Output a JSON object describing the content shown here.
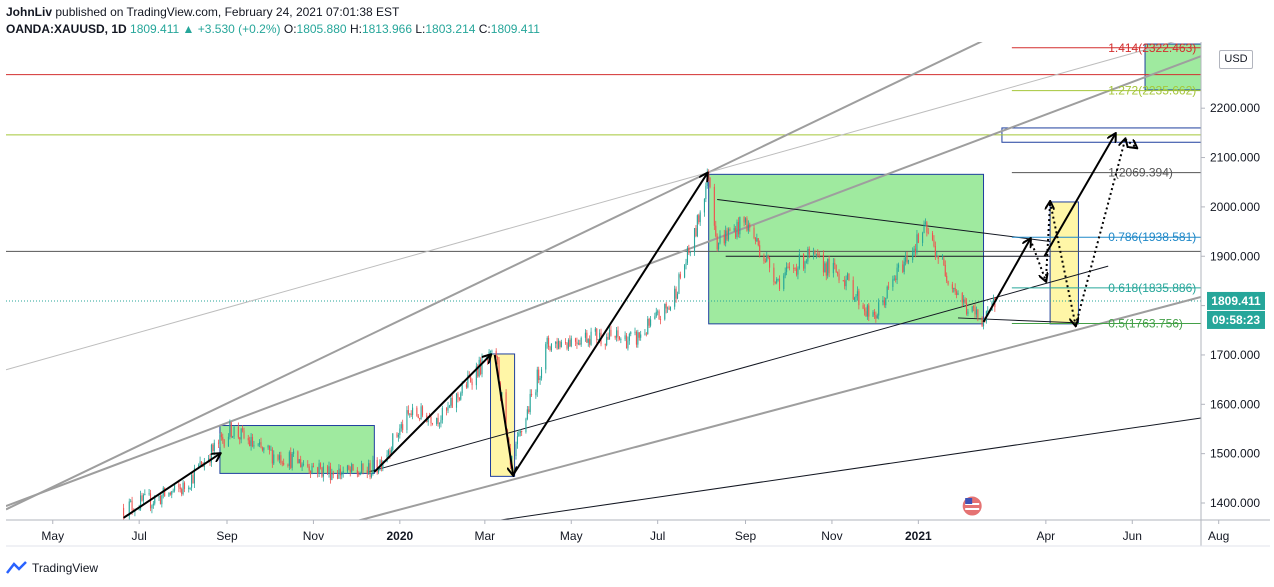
{
  "header": {
    "author": "JohnLiv",
    "published_text": "published on TradingView.com, February 24, 2021 07:01:38 EST",
    "symbol": "OANDA:XAUUSD, 1D",
    "last": "1809.411",
    "change": "+3.530 (+0.2%)",
    "open_label": "O:",
    "open": "1805.880",
    "high_label": "H:",
    "high": "1813.966",
    "low_label": "L:",
    "low": "1803.214",
    "close_label": "C:",
    "close": "1809.411"
  },
  "currency_button": "USD",
  "footer": {
    "brand": "TradingView"
  },
  "chart_data": {
    "type": "candlestick",
    "title": "",
    "xlabel": "",
    "ylabel": "",
    "ylim": [
      1370,
      2240
    ],
    "y_ticks": [
      1400,
      1500,
      1600,
      1700,
      1800,
      1900,
      2000,
      2100,
      2200
    ],
    "y_tick_labels": [
      "1400.000",
      "1500.000",
      "1600.000",
      "1700.000",
      "1800.000",
      "1900.000",
      "2000.000",
      "2100.000",
      "2200.000"
    ],
    "x_range": [
      "2019-03-29",
      "2021-08-31"
    ],
    "x_ticks": [
      {
        "date": "2019-05-01",
        "label": "May"
      },
      {
        "date": "2019-07-01",
        "label": "Jul"
      },
      {
        "date": "2019-09-01",
        "label": "Sep"
      },
      {
        "date": "2019-11-01",
        "label": "Nov"
      },
      {
        "date": "2020-01-01",
        "label": "2020"
      },
      {
        "date": "2020-03-01",
        "label": "Mar"
      },
      {
        "date": "2020-05-01",
        "label": "May"
      },
      {
        "date": "2020-07-01",
        "label": "Jul"
      },
      {
        "date": "2020-09-01",
        "label": "Sep"
      },
      {
        "date": "2020-11-01",
        "label": "Nov"
      },
      {
        "date": "2021-01-01",
        "label": "2021"
      },
      {
        "date": "2021-04-01",
        "label": "Apr"
      },
      {
        "date": "2021-06-01",
        "label": "Jun"
      },
      {
        "date": "2021-08-01",
        "label": "Aug"
      }
    ],
    "price_path": [
      {
        "date": "2019-06-20",
        "price": 1390
      },
      {
        "date": "2019-07-10",
        "price": 1405
      },
      {
        "date": "2019-08-01",
        "price": 1430
      },
      {
        "date": "2019-08-20",
        "price": 1500
      },
      {
        "date": "2019-09-04",
        "price": 1550
      },
      {
        "date": "2019-09-25",
        "price": 1505
      },
      {
        "date": "2019-10-15",
        "price": 1490
      },
      {
        "date": "2019-11-10",
        "price": 1465
      },
      {
        "date": "2019-12-01",
        "price": 1460
      },
      {
        "date": "2019-12-15",
        "price": 1470
      },
      {
        "date": "2020-01-08",
        "price": 1580
      },
      {
        "date": "2020-02-01",
        "price": 1575
      },
      {
        "date": "2020-02-24",
        "price": 1670
      },
      {
        "date": "2020-03-09",
        "price": 1700
      },
      {
        "date": "2020-03-19",
        "price": 1470
      },
      {
        "date": "2020-04-14",
        "price": 1720
      },
      {
        "date": "2020-05-15",
        "price": 1740
      },
      {
        "date": "2020-06-15",
        "price": 1730
      },
      {
        "date": "2020-07-10",
        "price": 1800
      },
      {
        "date": "2020-07-27",
        "price": 1940
      },
      {
        "date": "2020-08-06",
        "price": 2070
      },
      {
        "date": "2020-08-12",
        "price": 1930
      },
      {
        "date": "2020-09-01",
        "price": 1970
      },
      {
        "date": "2020-09-24",
        "price": 1850
      },
      {
        "date": "2020-10-15",
        "price": 1900
      },
      {
        "date": "2020-11-09",
        "price": 1860
      },
      {
        "date": "2020-11-30",
        "price": 1770
      },
      {
        "date": "2020-12-20",
        "price": 1880
      },
      {
        "date": "2021-01-06",
        "price": 1955
      },
      {
        "date": "2021-01-20",
        "price": 1870
      },
      {
        "date": "2021-02-05",
        "price": 1790
      },
      {
        "date": "2021-02-18",
        "price": 1770
      },
      {
        "date": "2021-02-24",
        "price": 1809.411
      }
    ],
    "last_price_label": "1809.411",
    "countdown_label": "09:58:23",
    "fib_levels": [
      {
        "level": "1.414",
        "price": 2322.463,
        "label": "1.414(2322.463)",
        "color": "#d32f2f"
      },
      {
        "level": "1.272",
        "price": 2235.662,
        "label": "1.272(2235.662)",
        "color": "#a4c639"
      },
      {
        "level": "1",
        "price": 2069.394,
        "label": "1(2069.394)",
        "color": "#555555"
      },
      {
        "level": "0.786",
        "price": 1938.581,
        "label": "0.786(1938.581)",
        "color": "#1e88c8"
      },
      {
        "level": "0.618",
        "price": 1835.886,
        "label": "0.618(1835.886)",
        "color": "#26a69a"
      },
      {
        "level": "0.5",
        "price": 1763.756,
        "label": "0.5(1763.756)",
        "color": "#43a047"
      }
    ],
    "green_boxes": [
      {
        "x0": "2019-08-27",
        "x1": "2019-12-14",
        "y0": 1460,
        "y1": 1557
      },
      {
        "x0": "2020-08-06",
        "x1": "2021-02-16",
        "y0": 1763,
        "y1": 2066
      },
      {
        "x0": "2021-06-10",
        "x1": "2021-08-20",
        "y0": 2237,
        "y1": 2330
      }
    ],
    "yellow_boxes": [
      {
        "x0": "2020-03-05",
        "x1": "2020-03-22",
        "y0": 1454,
        "y1": 1702
      },
      {
        "x0": "2021-04-04",
        "x1": "2021-04-24",
        "y0": 1763,
        "y1": 2010
      }
    ],
    "blue_zone": {
      "x0": "2021-03-01",
      "x1": "2021-09-30",
      "y0": 2131,
      "y1": 2160
    },
    "horizontal_lines": [
      {
        "price": 2268,
        "color": "#d32f2f"
      },
      {
        "price": 2146,
        "color": "#a4c639"
      },
      {
        "price": 1910,
        "color": "#555555"
      },
      {
        "price": 1809.411,
        "color": "#26a69a",
        "dashed": true
      }
    ],
    "trend_lines": [
      {
        "p1": [
          "2019-03-29",
          1387
        ],
        "p2": [
          "2020-08-06",
          2070
        ],
        "extend": true,
        "color": "#9e9e9e",
        "width": 2
      },
      {
        "p1": [
          "2019-03-29",
          1670
        ],
        "p2": [
          "2020-08-06",
          2070
        ],
        "extend": true,
        "color": "#bdbdbd",
        "width": 1
      },
      {
        "p1": [
          "2019-08-27",
          1557
        ],
        "p2": [
          "2021-03-18",
          2172
        ],
        "extend": true,
        "color": "#9e9e9e",
        "width": 2
      },
      {
        "p1": [
          "2019-11-27",
          1360
        ],
        "p2": [
          "2021-08-31",
          1850
        ],
        "extend": false,
        "color": "#9e9e9e",
        "width": 2
      },
      {
        "p1": [
          "2019-12-10",
          1463
        ],
        "p2": [
          "2021-05-15",
          1880
        ],
        "extend": false,
        "color": "#131722",
        "width": 1
      },
      {
        "p1": [
          "2020-02-28",
          1360
        ],
        "p2": [
          "2021-08-31",
          1590
        ],
        "extend": false,
        "color": "#131722",
        "width": 1
      },
      {
        "p1": [
          "2020-08-12",
          2015
        ],
        "p2": [
          "2021-04-04",
          1930
        ],
        "extend": false,
        "color": "#131722",
        "width": 1
      },
      {
        "p1": [
          "2020-08-18",
          1900
        ],
        "p2": [
          "2021-04-04",
          1900
        ],
        "extend": false,
        "color": "#131722",
        "width": 1
      },
      {
        "p1": [
          "2021-01-29",
          1775
        ],
        "p2": [
          "2021-04-24",
          1765
        ],
        "extend": false,
        "color": "#131722",
        "width": 1
      }
    ],
    "arrows": [
      {
        "p1": [
          "2019-06-20",
          1370
        ],
        "p2": [
          "2019-08-27",
          1500
        ],
        "style": "solid"
      },
      {
        "p1": [
          "2019-12-14",
          1463
        ],
        "p2": [
          "2020-03-05",
          1700
        ],
        "style": "solid"
      },
      {
        "p1": [
          "2020-03-08",
          1700
        ],
        "p2": [
          "2020-03-21",
          1457
        ],
        "style": "solid"
      },
      {
        "p1": [
          "2020-03-21",
          1457
        ],
        "p2": [
          "2020-08-05",
          2068
        ],
        "style": "solid"
      },
      {
        "p1": [
          "2021-02-16",
          1767
        ],
        "p2": [
          "2021-03-21",
          1935
        ],
        "style": "solid"
      },
      {
        "p1": [
          "2021-03-21",
          1935
        ],
        "p2": [
          "2021-04-01",
          1850
        ],
        "style": "dotted"
      },
      {
        "p1": [
          "2021-04-01",
          1850
        ],
        "p2": [
          "2021-04-04",
          2010
        ],
        "style": "dotted"
      },
      {
        "p1": [
          "2021-04-04",
          2010
        ],
        "p2": [
          "2021-04-22",
          1760
        ],
        "style": "dotted"
      },
      {
        "p1": [
          "2021-04-22",
          1760
        ],
        "p2": [
          "2021-05-27",
          2137
        ],
        "style": "dotted"
      },
      {
        "p1": [
          "2021-05-27",
          2137
        ],
        "p2": [
          "2021-06-04",
          2120
        ],
        "style": "dotted"
      },
      {
        "p1": [
          "2021-03-31",
          1900
        ],
        "p2": [
          "2021-05-20",
          2148
        ],
        "style": "solid"
      }
    ]
  }
}
